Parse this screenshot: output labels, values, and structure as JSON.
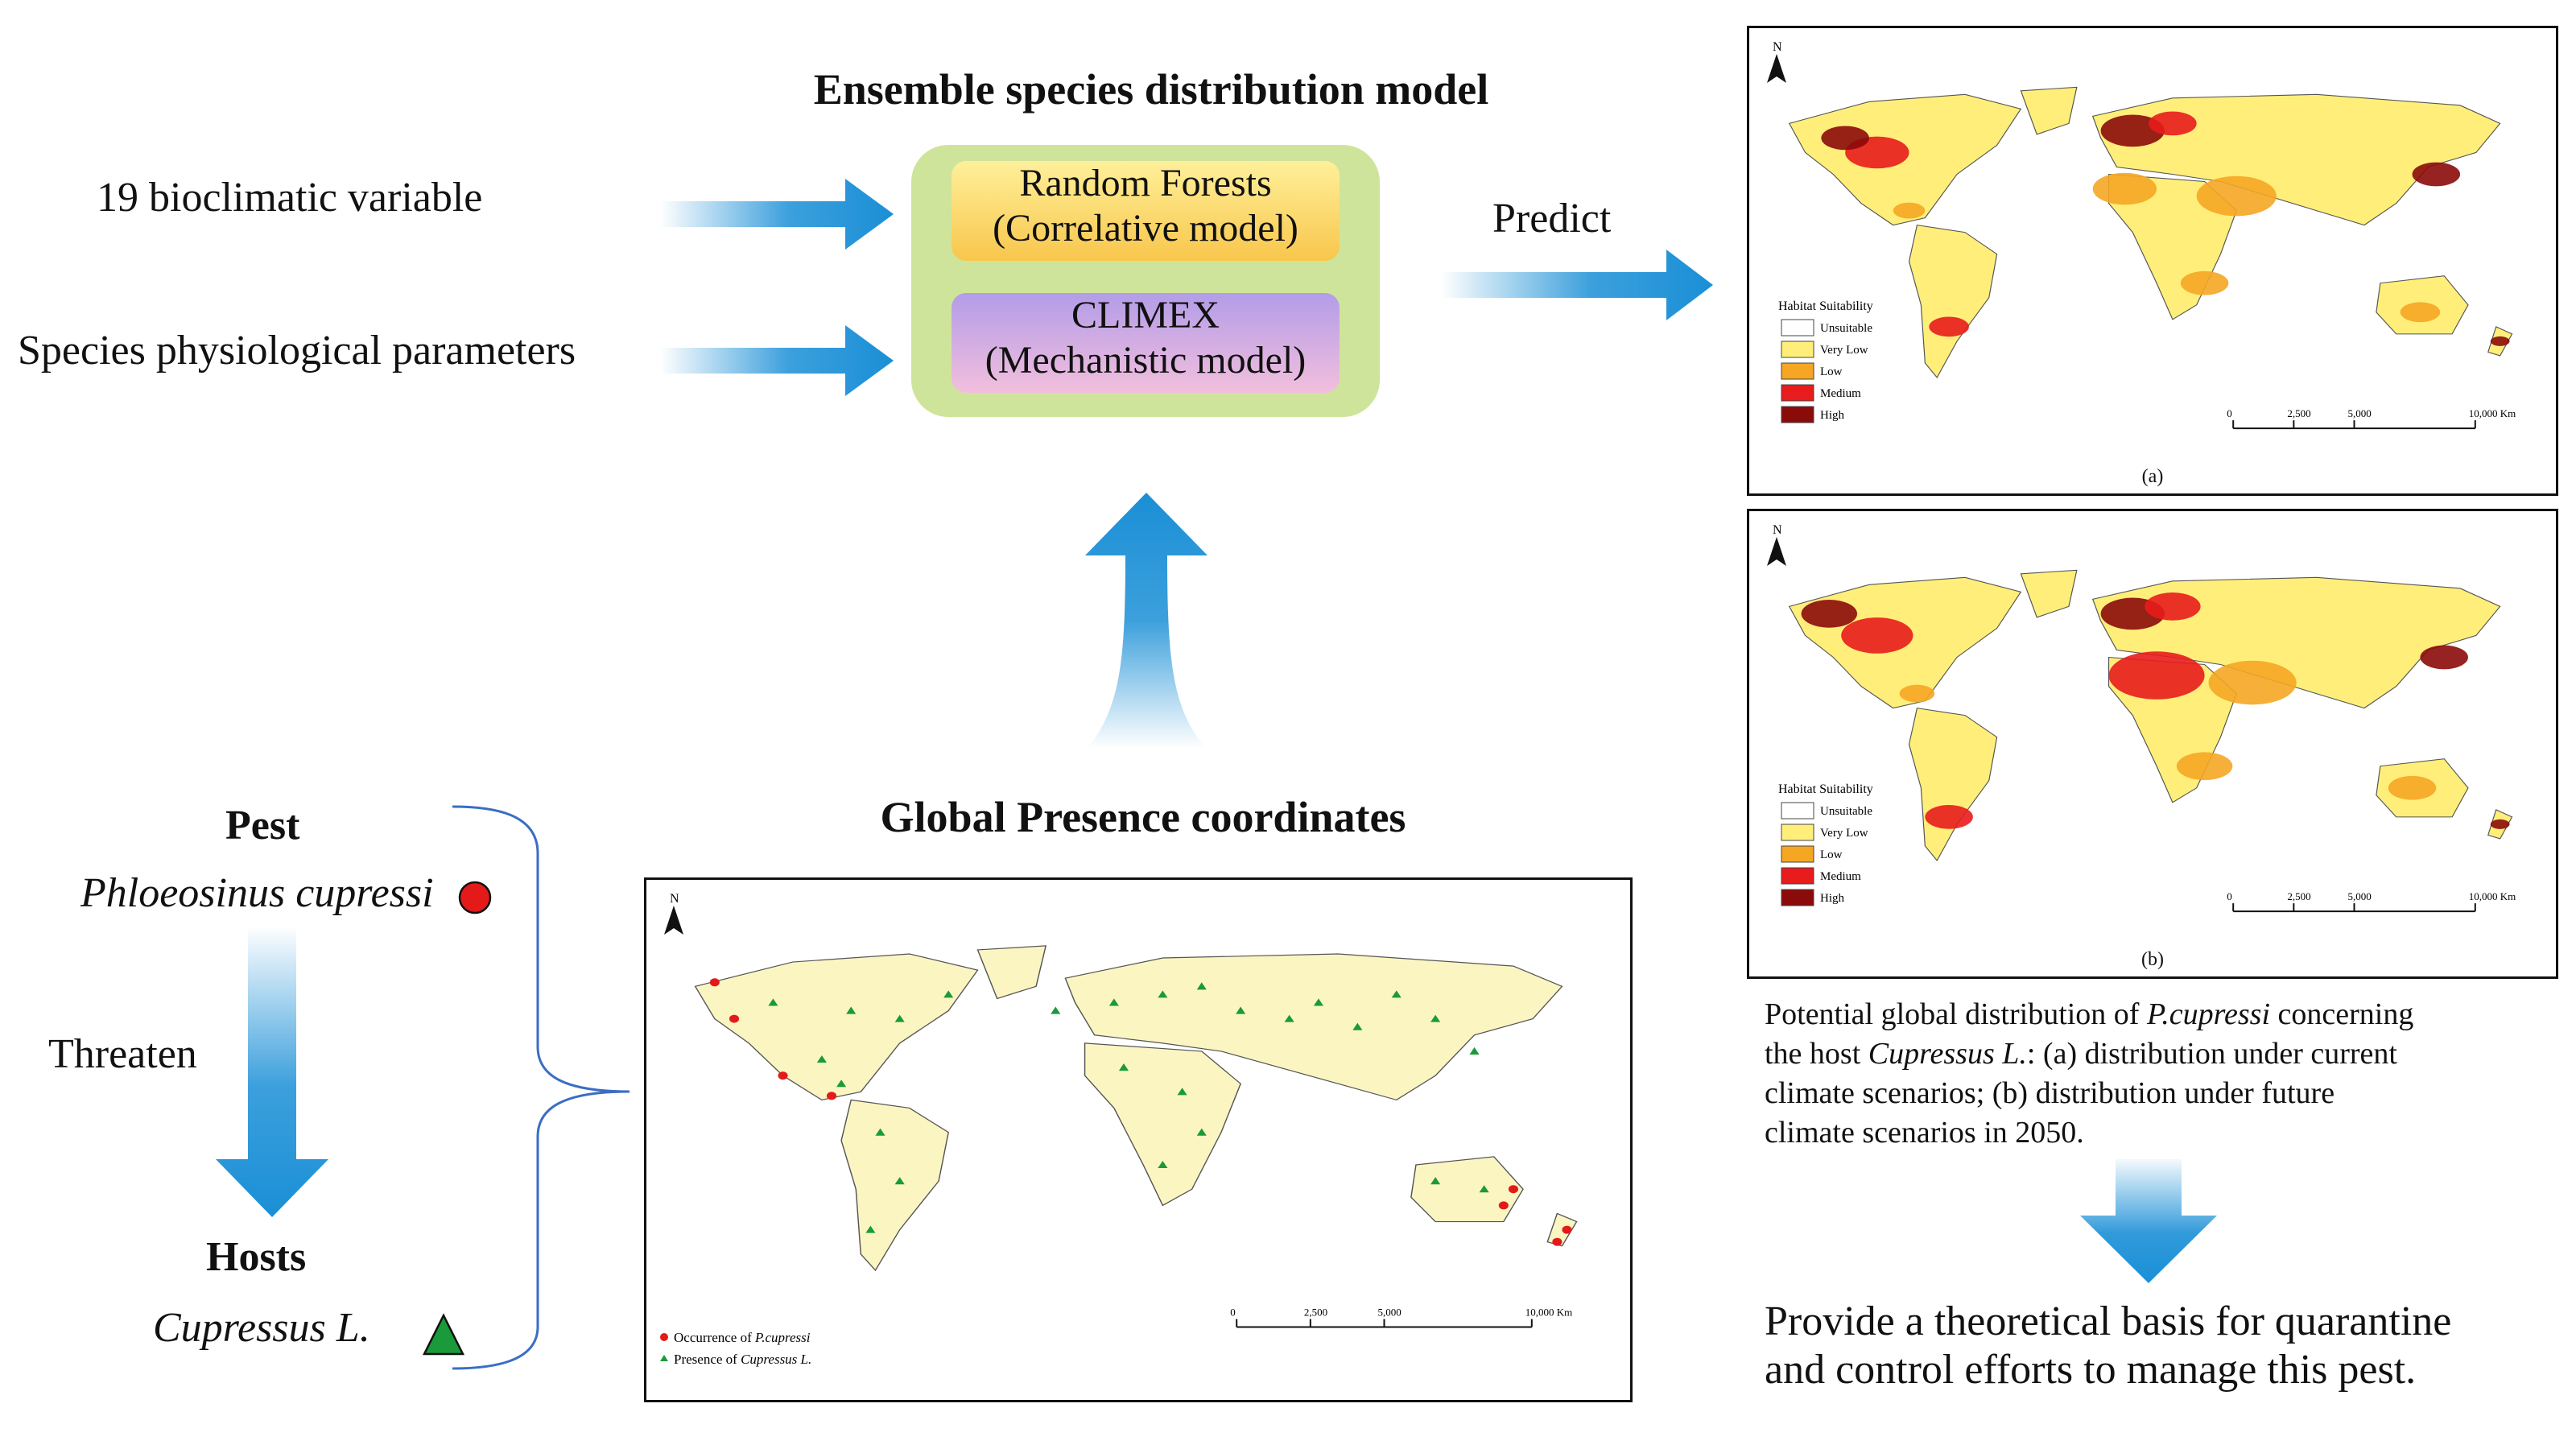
{
  "diagram": {
    "ensemble_title": "Ensemble species distribution model",
    "inputs": [
      "19 bioclimatic variable",
      "Species physiological parameters"
    ],
    "models": [
      {
        "line1": "Random Forests",
        "line2": "(Correlative model)"
      },
      {
        "line1": "CLIMEX",
        "line2": "(Mechanistic model)"
      }
    ],
    "predict_label": "Predict",
    "presence_title": "Global Presence coordinates",
    "pest_heading": "Pest",
    "pest_species": "Phloeosinus cupressi",
    "threaten_label": "Threaten",
    "hosts_heading": "Hosts",
    "host_species": "Cupressus L.",
    "caption": {
      "line1": "Potential global distribution of ",
      "species": "P.cupressi",
      "line1_end": " concerning",
      "line2_start": "the host ",
      "host": "Cupressus L.",
      "line2_end": ": (a) distribution under current",
      "line3": "climate scenarios; (b) distribution under future",
      "line4": "climate scenarios in 2050."
    },
    "final_line1": "Provide a theoretical basis for quarantine",
    "final_line2": "and control efforts to manage this pest."
  },
  "maps": {
    "north_label": "N",
    "scale_ticks": [
      "0",
      "2,500",
      "5,000",
      "10,000 Km"
    ],
    "suitability_title": "Habitat Suitability",
    "suitability_levels": [
      {
        "label": "Unsuitable",
        "color": "#ffffff"
      },
      {
        "label": "Very Low",
        "color": "#ffef7a"
      },
      {
        "label": "Low",
        "color": "#f5a623"
      },
      {
        "label": "Medium",
        "color": "#e81c1c"
      },
      {
        "label": "High",
        "color": "#8b0a0a"
      }
    ],
    "panel_a_label": "(a)",
    "panel_b_label": "(b)",
    "presence_legend": {
      "occurrence_text": "Occurrence of ",
      "occurrence_species": "P.cupressi",
      "presence_text": "Presence of ",
      "presence_species": "Cupressus L."
    }
  },
  "colors": {
    "arrow_blue": "#1a8fd6",
    "ensemble_box": "#cfe49b",
    "pest_marker": "#e41a1a",
    "host_marker": "#1a9a3a",
    "land": "#fbf5c2"
  }
}
